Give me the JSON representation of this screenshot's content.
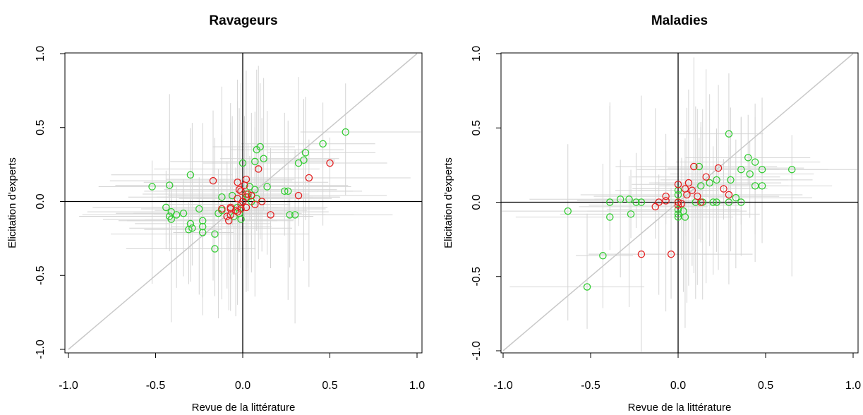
{
  "chart_data": [
    {
      "type": "scatter",
      "title": "Ravageurs",
      "xlabel": "Revue de la littérature",
      "ylabel": "Elicitation d'experts",
      "xlim": [
        -1.0,
        1.0
      ],
      "ylim": [
        -1.0,
        1.0
      ],
      "xticks": [
        "-1.0",
        "-0.5",
        "0.0",
        "0.5",
        "1.0"
      ],
      "yticks": [
        "-1.0",
        "-0.5",
        "0.0",
        "0.5",
        "1.0"
      ],
      "reference_lines": [
        "x=0",
        "y=0",
        "y=x"
      ],
      "colors": {
        "green": "#33cc33",
        "red": "#e32020",
        "error_bar": "#d4d4d4",
        "identity": "#c8c8c8"
      },
      "series": [
        {
          "color": "#33cc33",
          "points": [
            [
              0.59,
              0.47
            ],
            [
              0.46,
              0.39
            ],
            [
              0.36,
              0.33
            ],
            [
              0.35,
              0.28
            ],
            [
              0.32,
              0.26
            ],
            [
              0.1,
              0.37
            ],
            [
              0.08,
              0.35
            ],
            [
              0.12,
              0.29
            ],
            [
              0.07,
              0.27
            ],
            [
              0.0,
              0.26
            ],
            [
              -0.3,
              0.18
            ],
            [
              -0.52,
              0.1
            ],
            [
              -0.42,
              0.11
            ],
            [
              0.14,
              0.1
            ],
            [
              0.07,
              0.08
            ],
            [
              0.04,
              0.1
            ],
            [
              0.02,
              0.05
            ],
            [
              0.24,
              0.07
            ],
            [
              0.26,
              0.07
            ],
            [
              -0.12,
              0.03
            ],
            [
              0.03,
              0.03
            ],
            [
              0.08,
              0.02
            ],
            [
              -0.06,
              0.04
            ],
            [
              -0.44,
              -0.04
            ],
            [
              -0.41,
              -0.07
            ],
            [
              -0.38,
              -0.09
            ],
            [
              -0.34,
              -0.08
            ],
            [
              -0.42,
              -0.1
            ],
            [
              -0.41,
              -0.12
            ],
            [
              -0.25,
              -0.05
            ],
            [
              -0.14,
              -0.08
            ],
            [
              -0.12,
              -0.06
            ],
            [
              -0.03,
              -0.04
            ],
            [
              -0.02,
              -0.08
            ],
            [
              -0.01,
              -0.12
            ],
            [
              0.27,
              -0.09
            ],
            [
              0.3,
              -0.09
            ],
            [
              -0.3,
              -0.15
            ],
            [
              -0.29,
              -0.18
            ],
            [
              -0.31,
              -0.19
            ],
            [
              -0.23,
              -0.13
            ],
            [
              -0.23,
              -0.17
            ],
            [
              -0.23,
              -0.21
            ],
            [
              -0.16,
              -0.22
            ],
            [
              -0.16,
              -0.32
            ],
            [
              0.05,
              0.0
            ],
            [
              -0.05,
              -0.1
            ]
          ]
        },
        {
          "color": "#e32020",
          "points": [
            [
              0.5,
              0.26
            ],
            [
              0.38,
              0.16
            ],
            [
              0.09,
              0.22
            ],
            [
              0.02,
              0.15
            ],
            [
              -0.17,
              0.14
            ],
            [
              -0.03,
              0.13
            ],
            [
              0.01,
              0.11
            ],
            [
              -0.02,
              0.08
            ],
            [
              -0.01,
              0.07
            ],
            [
              0.03,
              0.05
            ],
            [
              0.02,
              0.03
            ],
            [
              0.05,
              0.04
            ],
            [
              0.0,
              0.0
            ],
            [
              -0.03,
              0.02
            ],
            [
              0.32,
              0.04
            ],
            [
              0.11,
              0.0
            ],
            [
              0.07,
              -0.02
            ],
            [
              -0.01,
              -0.02
            ],
            [
              -0.01,
              -0.05
            ],
            [
              -0.12,
              -0.05
            ],
            [
              -0.07,
              -0.04
            ],
            [
              -0.07,
              -0.05
            ],
            [
              -0.04,
              -0.06
            ],
            [
              -0.03,
              -0.07
            ],
            [
              -0.07,
              -0.09
            ],
            [
              -0.09,
              -0.1
            ],
            [
              -0.08,
              -0.13
            ],
            [
              0.16,
              -0.09
            ],
            [
              0.02,
              -0.04
            ]
          ]
        }
      ]
    },
    {
      "type": "scatter",
      "title": "Maladies",
      "xlabel": "Revue de la littérature",
      "ylabel": "Elicitation d'experts",
      "xlim": [
        -1.0,
        1.0
      ],
      "ylim": [
        -1.0,
        1.0
      ],
      "xticks": [
        "-1.0",
        "-0.5",
        "0.0",
        "0.5",
        "1.0"
      ],
      "yticks": [
        "-1.0",
        "-0.5",
        "0.0",
        "0.5",
        "1.0"
      ],
      "reference_lines": [
        "x=0",
        "y=0",
        "y=x"
      ],
      "colors": {
        "green": "#33cc33",
        "red": "#e32020",
        "error_bar": "#d4d4d4",
        "identity": "#c8c8c8"
      },
      "series": [
        {
          "color": "#33cc33",
          "points": [
            [
              0.29,
              0.46
            ],
            [
              0.4,
              0.3
            ],
            [
              0.44,
              0.27
            ],
            [
              0.48,
              0.22
            ],
            [
              0.65,
              0.22
            ],
            [
              0.36,
              0.22
            ],
            [
              0.41,
              0.19
            ],
            [
              0.12,
              0.24
            ],
            [
              0.3,
              0.15
            ],
            [
              0.22,
              0.15
            ],
            [
              0.18,
              0.13
            ],
            [
              0.44,
              0.11
            ],
            [
              0.48,
              0.11
            ],
            [
              0.13,
              0.11
            ],
            [
              0.33,
              0.03
            ],
            [
              0.29,
              0.0
            ],
            [
              0.36,
              0.0
            ],
            [
              0.22,
              0.0
            ],
            [
              0.2,
              0.0
            ],
            [
              0.14,
              0.0
            ],
            [
              0.1,
              0.0
            ],
            [
              0.0,
              0.08
            ],
            [
              0.0,
              0.05
            ],
            [
              0.0,
              0.0
            ],
            [
              0.0,
              -0.05
            ],
            [
              0.0,
              -0.08
            ],
            [
              0.0,
              -0.1
            ],
            [
              0.03,
              -0.06
            ],
            [
              0.04,
              -0.1
            ],
            [
              -0.33,
              0.02
            ],
            [
              -0.28,
              0.02
            ],
            [
              -0.24,
              0.0
            ],
            [
              -0.21,
              0.0
            ],
            [
              -0.39,
              0.0
            ],
            [
              -0.27,
              -0.08
            ],
            [
              -0.39,
              -0.1
            ],
            [
              -0.63,
              -0.06
            ],
            [
              -0.43,
              -0.36
            ],
            [
              -0.52,
              -0.57
            ]
          ]
        },
        {
          "color": "#e32020",
          "points": [
            [
              0.09,
              0.24
            ],
            [
              0.23,
              0.23
            ],
            [
              0.16,
              0.17
            ],
            [
              0.06,
              0.13
            ],
            [
              0.0,
              0.12
            ],
            [
              0.04,
              0.09
            ],
            [
              0.08,
              0.08
            ],
            [
              0.26,
              0.09
            ],
            [
              0.29,
              0.05
            ],
            [
              0.05,
              0.05
            ],
            [
              0.11,
              0.04
            ],
            [
              -0.07,
              0.04
            ],
            [
              -0.07,
              0.01
            ],
            [
              -0.11,
              0.0
            ],
            [
              -0.13,
              -0.03
            ],
            [
              0.0,
              0.0
            ],
            [
              0.02,
              -0.01
            ],
            [
              0.13,
              0.0
            ],
            [
              0.0,
              -0.02
            ],
            [
              -0.21,
              -0.35
            ],
            [
              -0.04,
              -0.35
            ]
          ]
        }
      ]
    }
  ]
}
